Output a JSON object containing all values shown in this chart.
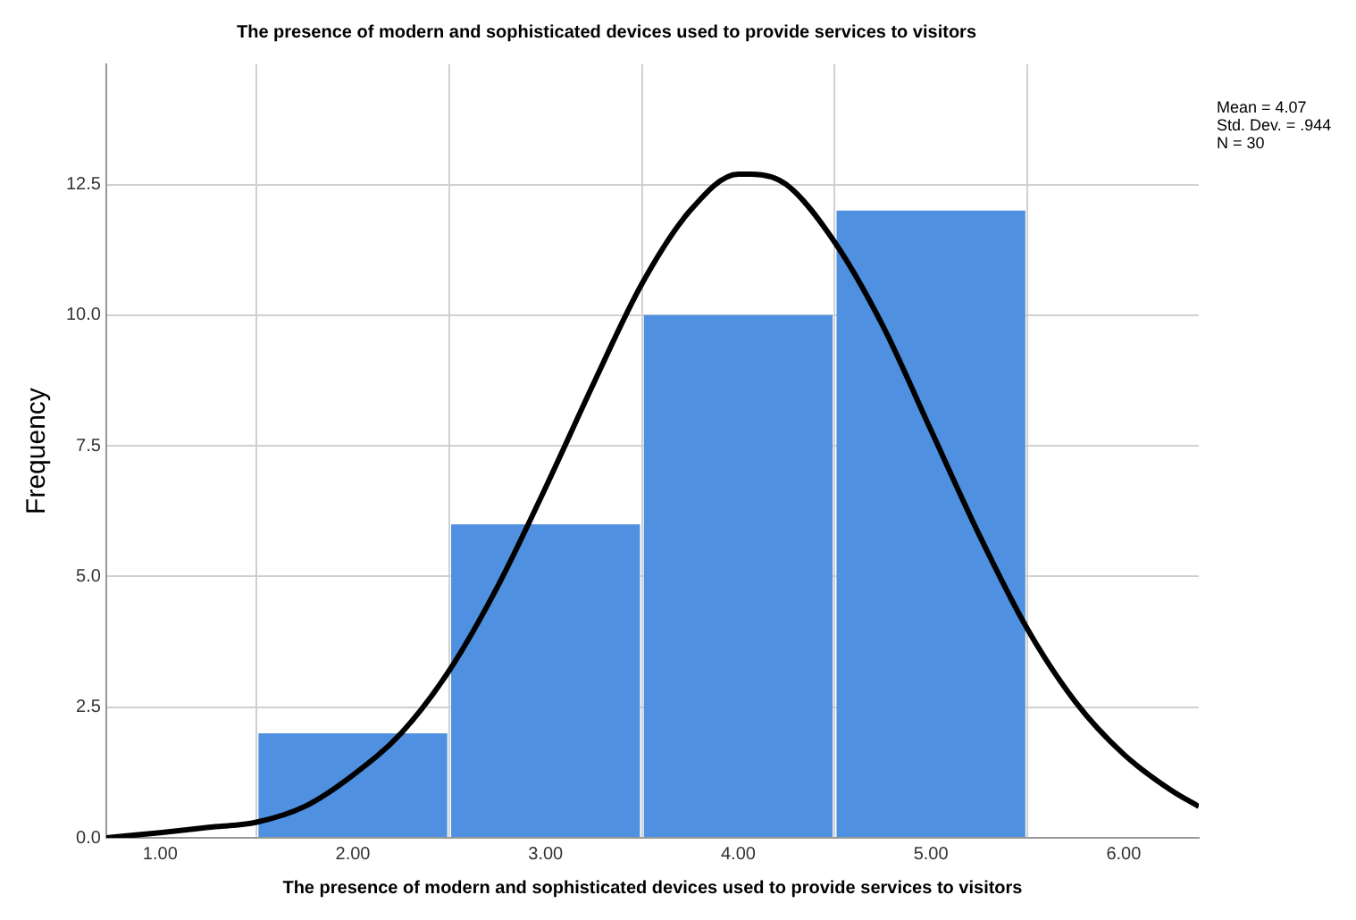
{
  "chart_data": {
    "type": "histogram",
    "title": "The presence of modern and sophisticated devices used to provide services to visitors",
    "xlabel": "The presence of modern and sophisticated devices used to provide services to visitors",
    "ylabel": "Frequency",
    "bins": [
      1.5,
      2.5,
      3.5,
      4.5,
      5.5
    ],
    "values": [
      2,
      6,
      10,
      12
    ],
    "color": "#5090e0",
    "series": [
      {
        "type": "line",
        "color": "#000000",
        "x": [
          0.72,
          1.0,
          1.25,
          1.5,
          1.75,
          2.0,
          2.25,
          2.5,
          2.75,
          3.0,
          3.25,
          3.5,
          3.75,
          4.0,
          4.07,
          4.25,
          4.5,
          4.75,
          5.0,
          5.25,
          5.5,
          5.75,
          6.0,
          6.25,
          6.39
        ],
        "values": [
          0.0,
          0.1,
          0.2,
          0.3,
          0.6,
          1.2,
          2.0,
          3.2,
          4.8,
          6.7,
          8.7,
          10.6,
          12.0,
          12.7,
          12.7,
          12.5,
          11.4,
          9.8,
          7.8,
          5.8,
          4.0,
          2.6,
          1.6,
          0.9,
          0.6
        ]
      }
    ],
    "annotations": [
      "Mean = 4.07",
      "Std. Dev. = .944",
      "N = 30"
    ],
    "xlim": [
      0.72,
      6.39
    ],
    "xticks": [
      {
        "value": 1,
        "label": "1.00"
      },
      {
        "value": 2,
        "label": "2.00"
      },
      {
        "value": 3,
        "label": "3.00"
      },
      {
        "value": 4,
        "label": "4.00"
      },
      {
        "value": 5,
        "label": "5.00"
      },
      {
        "value": 6,
        "label": "6.00"
      }
    ],
    "ylim": [
      0,
      14.8
    ],
    "yticks": [
      {
        "value": 0,
        "label": "0.0"
      },
      {
        "value": 2.5,
        "label": "2.5"
      },
      {
        "value": 5,
        "label": "5.0"
      },
      {
        "value": 7.5,
        "label": "7.5"
      },
      {
        "value": 10,
        "label": "10.0"
      },
      {
        "value": 12.5,
        "label": "12.5"
      }
    ],
    "grid": true,
    "legend": false,
    "marker": "none"
  }
}
